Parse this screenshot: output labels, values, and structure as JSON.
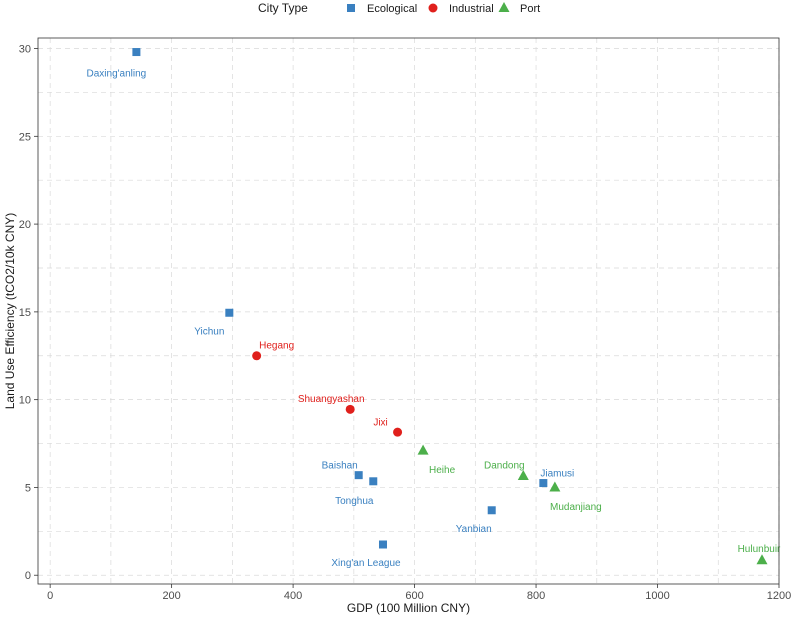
{
  "chart_data": {
    "type": "scatter",
    "xlabel": "GDP (100 Million CNY)",
    "ylabel": "Land Use Efficiency (tCO2/10k CNY)",
    "xlim": [
      -20,
      1200
    ],
    "ylim": [
      -0.5,
      30.6
    ],
    "xticks": [
      0,
      200,
      400,
      600,
      800,
      1000,
      1200
    ],
    "yticks": [
      0,
      5,
      10,
      15,
      20,
      25,
      30
    ],
    "grid": true,
    "legend": {
      "title": "City Type",
      "position": "top",
      "entries": [
        {
          "name": "Ecological",
          "color": "#3a80c0",
          "shape": "square"
        },
        {
          "name": "Industrial",
          "color": "#e0201c",
          "shape": "circle"
        },
        {
          "name": "Port",
          "color": "#4caf4a",
          "shape": "triangle"
        }
      ]
    },
    "series": [
      {
        "name": "Ecological",
        "points": [
          {
            "label": "Daxing'anling",
            "x": 142,
            "y": 29.8
          },
          {
            "label": "Yichun",
            "x": 295,
            "y": 14.95
          },
          {
            "label": "Baishan",
            "x": 508,
            "y": 5.7
          },
          {
            "label": "Tonghua",
            "x": 532,
            "y": 5.35
          },
          {
            "label": "Xing'an League",
            "x": 548,
            "y": 1.75
          },
          {
            "label": "Yanbian",
            "x": 727,
            "y": 3.7
          },
          {
            "label": "Jiamusi",
            "x": 812,
            "y": 5.25
          }
        ]
      },
      {
        "name": "Industrial",
        "points": [
          {
            "label": "Hegang",
            "x": 340,
            "y": 12.5
          },
          {
            "label": "Shuangyashan",
            "x": 494,
            "y": 9.45
          },
          {
            "label": "Jixi",
            "x": 572,
            "y": 8.15
          }
        ]
      },
      {
        "name": "Port",
        "points": [
          {
            "label": "Heihe",
            "x": 614,
            "y": 7.1
          },
          {
            "label": "Dandong",
            "x": 779,
            "y": 5.65
          },
          {
            "label": "Mudanjiang",
            "x": 831,
            "y": 5.0
          },
          {
            "label": "Hulunbuir",
            "x": 1172,
            "y": 0.85
          }
        ]
      }
    ]
  }
}
